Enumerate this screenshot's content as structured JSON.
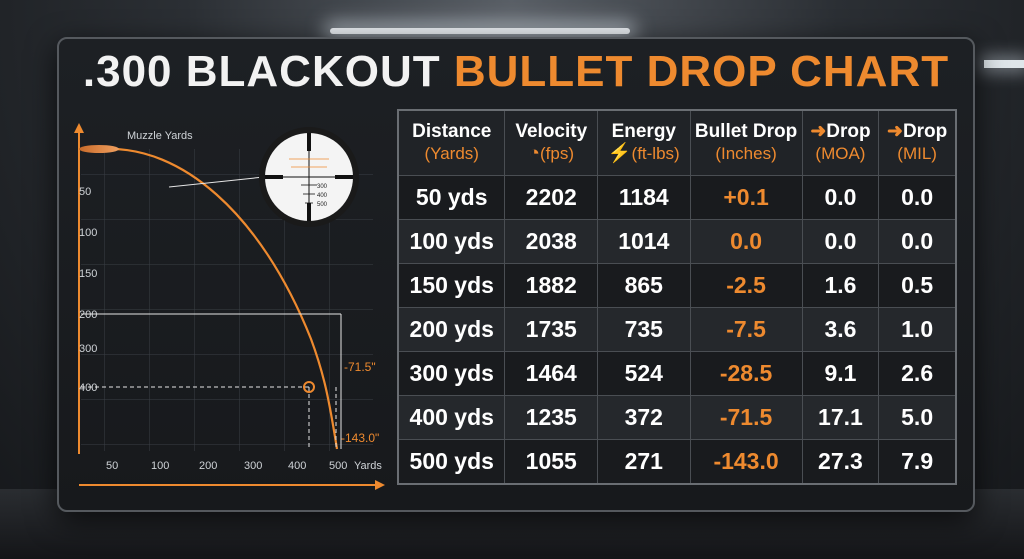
{
  "title": {
    "part1": ".300 BLACKOUT",
    "part2": "BULLET DROP CHART"
  },
  "colors": {
    "accent": "#ee8a2f",
    "text": "#ffffff",
    "panel": "#1d2024"
  },
  "chart_data": [
    {
      "type": "line",
      "y_top_label": "Muzzle Yards",
      "x_axis_label": "Yards",
      "x_ticks": [
        "50",
        "100",
        "200",
        "300",
        "400",
        "500"
      ],
      "y_ticks": [
        "50",
        "100",
        "150",
        "200",
        "300",
        "400"
      ],
      "annotations": [
        "-71.5\"",
        "-143.0\""
      ],
      "scope_ticks": [
        "300",
        "400",
        "500"
      ]
    },
    {
      "type": "table",
      "columns": [
        {
          "name": "Distance",
          "unit": "(Yards)"
        },
        {
          "name": "Velocity",
          "unit": "(fps)",
          "icon": "gauge-icon"
        },
        {
          "name": "Energy",
          "unit": "(ft-lbs)",
          "icon": "lightning-icon"
        },
        {
          "name": "Bullet Drop",
          "unit": "(Inches)"
        },
        {
          "name": "Drop",
          "unit": "(MOA)"
        },
        {
          "name": "Drop",
          "unit": "(MIL)"
        }
      ],
      "rows": [
        [
          "50 yds",
          "2202",
          "1184",
          "+0.1",
          "0.0",
          "0.0"
        ],
        [
          "100 yds",
          "2038",
          "1014",
          "0.0",
          "0.0",
          "0.0"
        ],
        [
          "150 yds",
          "1882",
          "865",
          "-2.5",
          "1.6",
          "0.5"
        ],
        [
          "200 yds",
          "1735",
          "735",
          "-7.5",
          "3.6",
          "1.0"
        ],
        [
          "300 yds",
          "1464",
          "524",
          "-28.5",
          "9.1",
          "2.6"
        ],
        [
          "400 yds",
          "1235",
          "372",
          "-71.5",
          "17.1",
          "5.0"
        ],
        [
          "500 yds",
          "1055",
          "271",
          "-143.0",
          "27.3",
          "7.9"
        ]
      ]
    }
  ]
}
